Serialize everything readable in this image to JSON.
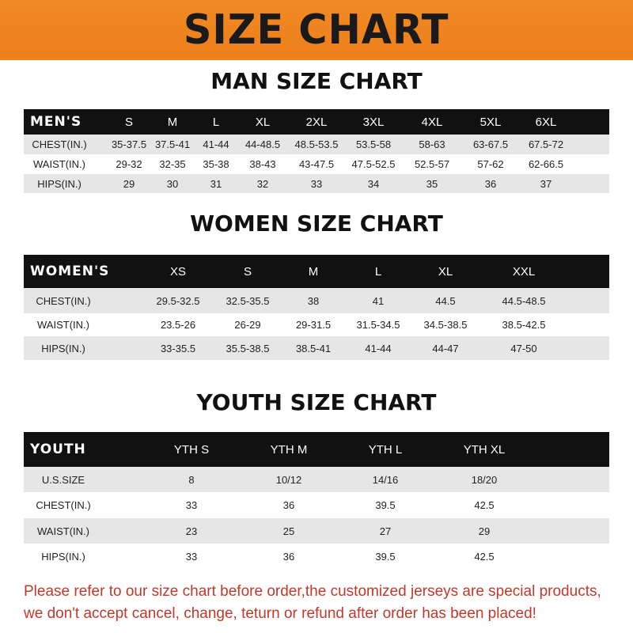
{
  "banner": {
    "title": "SIZE CHART",
    "color": "#ee7f1a"
  },
  "men": {
    "title": "MAN SIZE CHART",
    "header": [
      "MEN'S",
      "S",
      "M",
      "L",
      "XL",
      "2XL",
      "3XL",
      "4XL",
      "5XL",
      "6XL"
    ],
    "rows": [
      [
        "CHEST(IN.)",
        "35-37.5",
        "37.5-41",
        "41-44",
        "44-48.5",
        "48.5-53.5",
        "53.5-58",
        "58-63",
        "63-67.5",
        "67.5-72"
      ],
      [
        "WAIST(IN.)",
        "29-32",
        "32-35",
        "35-38",
        "38-43",
        "43-47.5",
        "47.5-52.5",
        "52.5-57",
        "57-62",
        "62-66.5"
      ],
      [
        "HIPS(IN.)",
        "29",
        "30",
        "31",
        "32",
        "33",
        "34",
        "35",
        "36",
        "37"
      ]
    ]
  },
  "women": {
    "title": "WOMEN SIZE CHART",
    "header": [
      "WOMEN'S",
      "XS",
      "S",
      "M",
      "L",
      "XL",
      "XXL"
    ],
    "rows": [
      [
        "CHEST(IN.)",
        "29.5-32.5",
        "32.5-35.5",
        "38",
        "41",
        "44.5",
        "44.5-48.5"
      ],
      [
        "WAIST(IN.)",
        "23.5-26",
        "26-29",
        "29-31.5",
        "31.5-34.5",
        "34.5-38.5",
        "38.5-42.5"
      ],
      [
        "HIPS(IN.)",
        "33-35.5",
        "35.5-38.5",
        "38.5-41",
        "41-44",
        "44-47",
        "47-50"
      ]
    ]
  },
  "youth": {
    "title": "YOUTH SIZE CHART",
    "header": [
      "YOUTH",
      "YTH S",
      "YTH M",
      "YTH L",
      "YTH XL"
    ],
    "rows": [
      [
        "U.S.SIZE",
        "8",
        "10/12",
        "14/16",
        "18/20"
      ],
      [
        "CHEST(IN.)",
        "33",
        "36",
        "39.5",
        "42.5"
      ],
      [
        "WAIST(IN.)",
        "23",
        "25",
        "27",
        "29"
      ],
      [
        "HIPS(IN.)",
        "33",
        "36",
        "39.5",
        "42.5"
      ]
    ]
  },
  "note": {
    "line1": "Please refer to our size chart before order,the customized jerseys are special products,",
    "line2": "we don't accept cancel, change, teturn or refund after order has been placed!",
    "color": "#c0392b"
  }
}
